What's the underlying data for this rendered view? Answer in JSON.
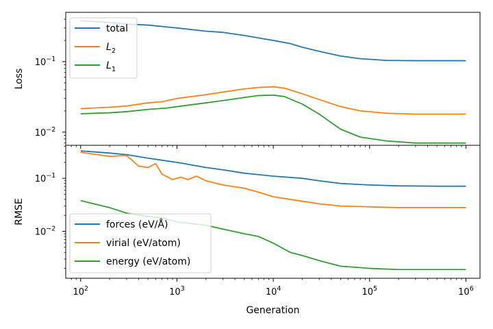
{
  "chart_data": [
    {
      "type": "line",
      "xscale": "log",
      "yscale": "log",
      "ylabel": "Loss",
      "xlim": [
        70,
        1400000
      ],
      "ylim": [
        0.0065,
        0.5
      ],
      "y_ticks": [
        {
          "value": 0.1,
          "base": "10",
          "exp": "−1"
        },
        {
          "value": 0.01,
          "base": "10",
          "exp": "−2"
        }
      ],
      "legend": "upper-left",
      "series": [
        {
          "name": "total",
          "color": "#1f77b4",
          "points": [
            [
              100,
              0.38
            ],
            [
              200,
              0.36
            ],
            [
              300,
              0.34
            ],
            [
              500,
              0.33
            ],
            [
              1000,
              0.3
            ],
            [
              2000,
              0.27
            ],
            [
              3000,
              0.26
            ],
            [
              5000,
              0.235
            ],
            [
              8000,
              0.21
            ],
            [
              10000,
              0.2
            ],
            [
              15000,
              0.18
            ],
            [
              20000,
              0.16
            ],
            [
              30000,
              0.14
            ],
            [
              50000,
              0.12
            ],
            [
              80000,
              0.11
            ],
            [
              150000,
              0.104
            ],
            [
              300000,
              0.103
            ],
            [
              1000000,
              0.103
            ]
          ]
        },
        {
          "name": "L",
          "subscript": "2",
          "color": "#ff7f0e",
          "points": [
            [
              100,
              0.0215
            ],
            [
              200,
              0.0225
            ],
            [
              300,
              0.0235
            ],
            [
              500,
              0.026
            ],
            [
              700,
              0.027
            ],
            [
              1000,
              0.03
            ],
            [
              2000,
              0.034
            ],
            [
              3000,
              0.037
            ],
            [
              5000,
              0.041
            ],
            [
              7000,
              0.043
            ],
            [
              10000,
              0.044
            ],
            [
              13000,
              0.042
            ],
            [
              20000,
              0.035
            ],
            [
              30000,
              0.029
            ],
            [
              50000,
              0.023
            ],
            [
              80000,
              0.02
            ],
            [
              150000,
              0.0185
            ],
            [
              300000,
              0.018
            ],
            [
              1000000,
              0.018
            ]
          ]
        },
        {
          "name": "L",
          "subscript": "1",
          "color": "#2ca02c",
          "points": [
            [
              100,
              0.0182
            ],
            [
              200,
              0.0188
            ],
            [
              300,
              0.0195
            ],
            [
              500,
              0.021
            ],
            [
              800,
              0.022
            ],
            [
              1000,
              0.023
            ],
            [
              2000,
              0.026
            ],
            [
              3000,
              0.028
            ],
            [
              5000,
              0.031
            ],
            [
              7000,
              0.033
            ],
            [
              10000,
              0.0335
            ],
            [
              13000,
              0.032
            ],
            [
              20000,
              0.025
            ],
            [
              30000,
              0.018
            ],
            [
              50000,
              0.011
            ],
            [
              80000,
              0.0085
            ],
            [
              150000,
              0.0075
            ],
            [
              300000,
              0.007
            ],
            [
              1000000,
              0.007
            ]
          ]
        }
      ]
    },
    {
      "type": "line",
      "xscale": "log",
      "yscale": "log",
      "ylabel": "RMSE",
      "xlabel": "Generation",
      "xlim": [
        70,
        1400000
      ],
      "ylim": [
        0.0013,
        0.42
      ],
      "x_ticks": [
        {
          "value": 100,
          "base": "10",
          "exp": "2"
        },
        {
          "value": 1000,
          "base": "10",
          "exp": "3"
        },
        {
          "value": 10000,
          "base": "10",
          "exp": "4"
        },
        {
          "value": 100000,
          "base": "10",
          "exp": "5"
        },
        {
          "value": 1000000,
          "base": "10",
          "exp": "6"
        }
      ],
      "y_ticks": [
        {
          "value": 0.1,
          "base": "10",
          "exp": "−1"
        },
        {
          "value": 0.01,
          "base": "10",
          "exp": "−2"
        }
      ],
      "legend": "lower-left",
      "series": [
        {
          "name": "forces (eV/Å)",
          "color": "#1f77b4",
          "points": [
            [
              100,
              0.33
            ],
            [
              200,
              0.3
            ],
            [
              300,
              0.28
            ],
            [
              500,
              0.24
            ],
            [
              1000,
              0.2
            ],
            [
              2000,
              0.16
            ],
            [
              3000,
              0.145
            ],
            [
              5000,
              0.125
            ],
            [
              10000,
              0.11
            ],
            [
              20000,
              0.1
            ],
            [
              30000,
              0.09
            ],
            [
              50000,
              0.08
            ],
            [
              100000,
              0.075
            ],
            [
              200000,
              0.072
            ],
            [
              500000,
              0.071
            ],
            [
              1000000,
              0.071
            ]
          ]
        },
        {
          "name": "virial (eV/atom)",
          "color": "#ff7f0e",
          "points": [
            [
              100,
              0.31
            ],
            [
              200,
              0.26
            ],
            [
              300,
              0.27
            ],
            [
              400,
              0.17
            ],
            [
              500,
              0.16
            ],
            [
              600,
              0.19
            ],
            [
              700,
              0.12
            ],
            [
              900,
              0.095
            ],
            [
              1100,
              0.105
            ],
            [
              1300,
              0.095
            ],
            [
              1600,
              0.11
            ],
            [
              2000,
              0.09
            ],
            [
              3000,
              0.075
            ],
            [
              5000,
              0.065
            ],
            [
              7000,
              0.055
            ],
            [
              10000,
              0.045
            ],
            [
              15000,
              0.04
            ],
            [
              20000,
              0.037
            ],
            [
              30000,
              0.033
            ],
            [
              50000,
              0.03
            ],
            [
              100000,
              0.029
            ],
            [
              200000,
              0.028
            ],
            [
              500000,
              0.028
            ],
            [
              1000000,
              0.028
            ]
          ]
        },
        {
          "name": "energy (eV/atom)",
          "color": "#2ca02c",
          "points": [
            [
              100,
              0.038
            ],
            [
              200,
              0.028
            ],
            [
              300,
              0.022
            ],
            [
              500,
              0.019
            ],
            [
              700,
              0.018
            ],
            [
              1000,
              0.015
            ],
            [
              2000,
              0.013
            ],
            [
              3000,
              0.011
            ],
            [
              5000,
              0.009
            ],
            [
              7000,
              0.008
            ],
            [
              10000,
              0.006
            ],
            [
              15000,
              0.004
            ],
            [
              20000,
              0.0035
            ],
            [
              30000,
              0.0028
            ],
            [
              50000,
              0.0022
            ],
            [
              100000,
              0.002
            ],
            [
              200000,
              0.0019
            ],
            [
              500000,
              0.0019
            ],
            [
              1000000,
              0.0019
            ]
          ]
        }
      ]
    }
  ]
}
